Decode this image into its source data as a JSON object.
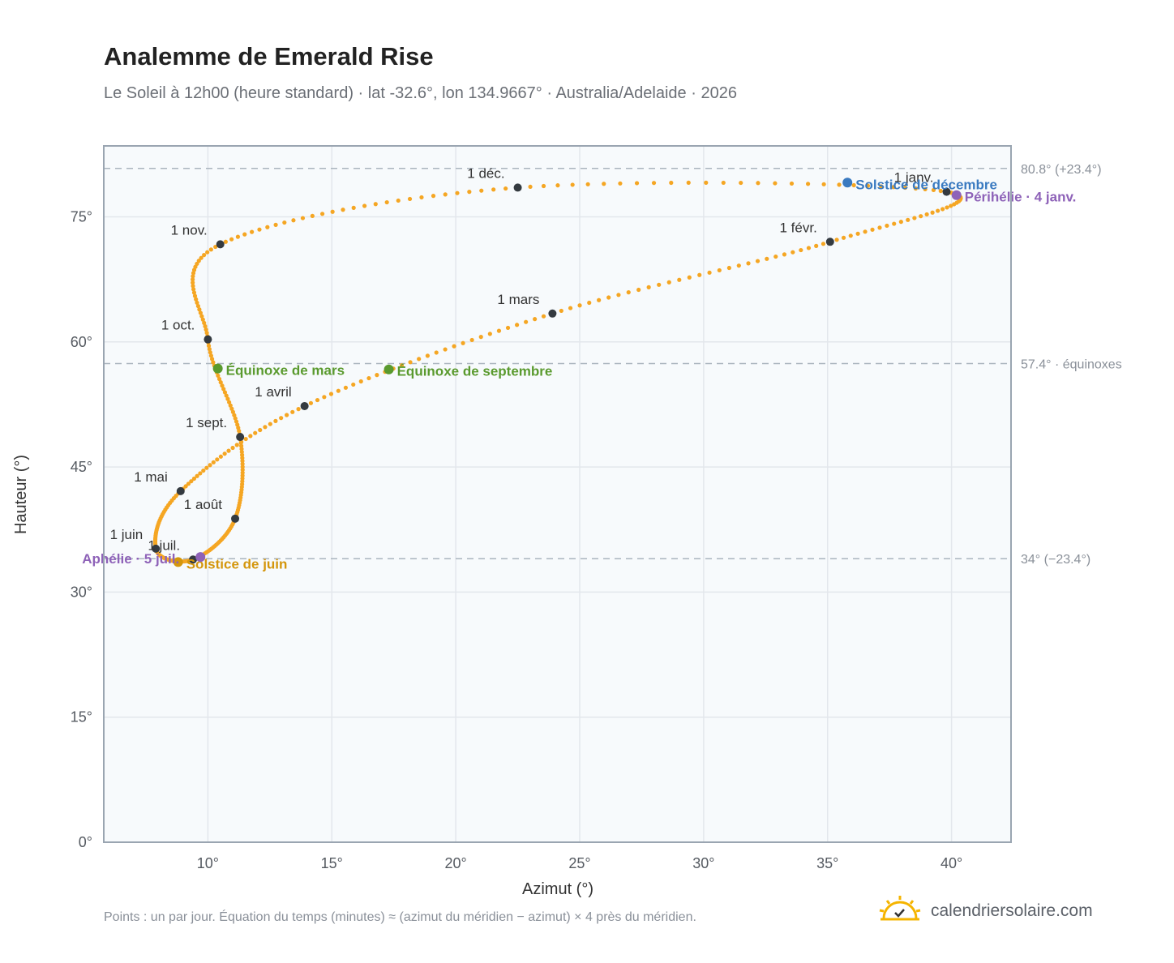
{
  "title": "Analemme de Emerald Rise",
  "subtitle": "Le Soleil à 12h00 (heure standard) · lat -32.6°, lon 134.9667° · Australia/Adelaide · 2026",
  "footnote": "Points : un par jour. Équation du temps (minutes) ≈ (azimut du méridien − azimut) × 4 près du méridien.",
  "brand": {
    "name": "calendriersolaire.com",
    "icon": "sun-check-icon"
  },
  "colors": {
    "path": "#f5a623",
    "month_marker": "#343a40",
    "equinox": "#5a9a2e",
    "december_solstice": "#3a7ac0",
    "june_solstice": "#d4960c",
    "apsis": "#8e62b8",
    "reference_line": "#aab4be",
    "plot_bg": "#f7fafc",
    "grid": "#e3e7ec",
    "frame": "#9aa5b1"
  },
  "chart_data": {
    "type": "scatter",
    "xlabel": "Azimut (°)",
    "ylabel": "Hauteur (°)",
    "xlim": [
      5.8,
      42.4
    ],
    "ylim": [
      0,
      83.5
    ],
    "xticks": [
      10,
      15,
      20,
      25,
      30,
      35,
      40
    ],
    "xtick_labels": [
      "10°",
      "15°",
      "20°",
      "25°",
      "30°",
      "35°",
      "40°"
    ],
    "yticks": [
      0,
      15,
      30,
      45,
      60,
      75
    ],
    "ytick_labels": [
      "0°",
      "15°",
      "30°",
      "45°",
      "60°",
      "75°"
    ],
    "grid": true,
    "reference_lines": [
      {
        "y": 80.8,
        "label": "80.8° (+23.4°)"
      },
      {
        "y": 57.4,
        "label": "57.4° · équinoxes"
      },
      {
        "y": 34.0,
        "label": "34° (−23.4°)"
      }
    ],
    "month_markers": [
      {
        "label": "1 janv.",
        "x": 39.8,
        "y": 78.0
      },
      {
        "label": "1 févr.",
        "x": 35.1,
        "y": 72.0
      },
      {
        "label": "1 mars",
        "x": 23.9,
        "y": 63.4
      },
      {
        "label": "1 avril",
        "x": 13.9,
        "y": 52.3
      },
      {
        "label": "1 mai",
        "x": 8.9,
        "y": 42.1
      },
      {
        "label": "1 juin",
        "x": 7.9,
        "y": 35.2
      },
      {
        "label": "1 juil.",
        "x": 9.4,
        "y": 33.9
      },
      {
        "label": "1 août",
        "x": 11.1,
        "y": 38.8
      },
      {
        "label": "1 sept.",
        "x": 11.3,
        "y": 48.6
      },
      {
        "label": "1 oct.",
        "x": 10.0,
        "y": 60.3
      },
      {
        "label": "1 nov.",
        "x": 10.5,
        "y": 71.7
      },
      {
        "label": "1 déc.",
        "x": 22.5,
        "y": 78.5
      }
    ],
    "events": [
      {
        "label": "Équinoxe de mars",
        "x": 10.4,
        "y": 56.8,
        "kind": "equinox"
      },
      {
        "label": "Équinoxe de septembre",
        "x": 17.3,
        "y": 56.7,
        "kind": "equinox"
      },
      {
        "label": "Solstice de décembre",
        "x": 35.8,
        "y": 79.1,
        "kind": "december_solstice"
      },
      {
        "label": "Solstice de juin",
        "x": 8.8,
        "y": 33.6,
        "kind": "june_solstice"
      },
      {
        "label": "Périhélie · 4 janv.",
        "x": 40.2,
        "y": 77.6,
        "kind": "apsis"
      },
      {
        "label": "Aphélie · 5 juil.",
        "x": 9.7,
        "y": 34.2,
        "kind": "apsis"
      }
    ]
  }
}
